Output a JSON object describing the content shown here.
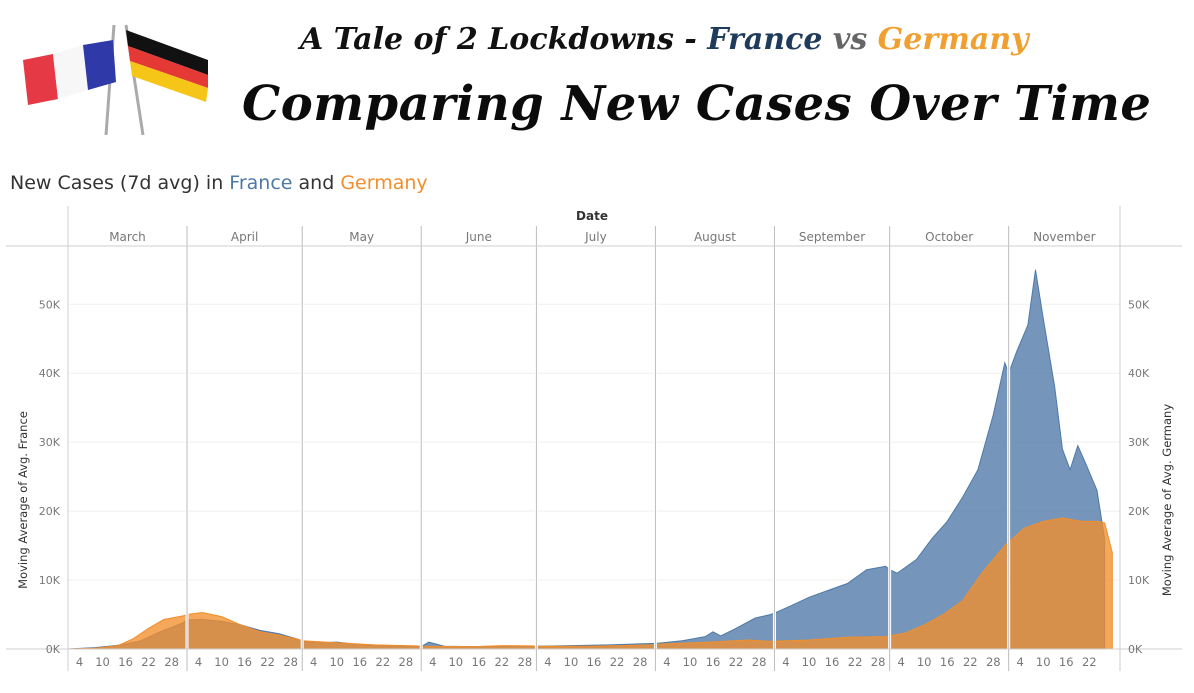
{
  "header": {
    "title_prefix": "A Tale of 2 Lockdowns -",
    "title_france": "France",
    "title_vs": "vs",
    "title_germany": "Germany",
    "subtitle": "Comparing New Cases Over Time"
  },
  "chart_heading": {
    "prefix": "New Cases (7d avg) in",
    "france": "France",
    "and": "and",
    "germany": "Germany"
  },
  "colors": {
    "france": "#4e79a7",
    "germany": "#f28e2b",
    "france_title": "#1f3b5c",
    "germany_title": "#f0a030"
  },
  "chart_data": {
    "type": "area",
    "title": "New Cases (7d avg) in France and Germany",
    "xlabel": "Date",
    "ylabel_left": "Moving Average of Avg. France",
    "ylabel_right": "Moving Average of Avg. Germany",
    "ylim": [
      0,
      57000
    ],
    "y_ticks": [
      0,
      10000,
      20000,
      30000,
      40000,
      50000
    ],
    "y_tick_labels": [
      "0K",
      "10K",
      "20K",
      "30K",
      "40K",
      "50K"
    ],
    "grid": true,
    "months": [
      {
        "name": "March",
        "days": [
          4,
          10,
          16,
          22,
          28
        ]
      },
      {
        "name": "April",
        "days": [
          4,
          10,
          16,
          22,
          28
        ]
      },
      {
        "name": "May",
        "days": [
          4,
          10,
          16,
          22,
          28
        ]
      },
      {
        "name": "June",
        "days": [
          4,
          10,
          16,
          22,
          28
        ]
      },
      {
        "name": "July",
        "days": [
          4,
          10,
          16,
          22,
          28
        ]
      },
      {
        "name": "August",
        "days": [
          4,
          10,
          16,
          22,
          28
        ]
      },
      {
        "name": "September",
        "days": [
          4,
          10,
          16,
          22,
          28
        ]
      },
      {
        "name": "October",
        "days": [
          4,
          10,
          16,
          22,
          28
        ]
      },
      {
        "name": "November",
        "days": [
          4,
          10,
          16,
          22
        ]
      }
    ],
    "series": [
      {
        "name": "France",
        "points": [
          [
            "2020-03-01",
            0
          ],
          [
            "2020-03-08",
            200
          ],
          [
            "2020-03-15",
            600
          ],
          [
            "2020-03-20",
            1200
          ],
          [
            "2020-03-25",
            2500
          ],
          [
            "2020-03-31",
            3800
          ],
          [
            "2020-04-01",
            4200
          ],
          [
            "2020-04-05",
            4300
          ],
          [
            "2020-04-10",
            4000
          ],
          [
            "2020-04-15",
            3500
          ],
          [
            "2020-04-20",
            2700
          ],
          [
            "2020-04-25",
            2200
          ],
          [
            "2020-04-30",
            1400
          ],
          [
            "2020-05-01",
            1100
          ],
          [
            "2020-05-05",
            900
          ],
          [
            "2020-05-10",
            1000
          ],
          [
            "2020-05-15",
            700
          ],
          [
            "2020-05-20",
            500
          ],
          [
            "2020-05-25",
            400
          ],
          [
            "2020-05-31",
            300
          ],
          [
            "2020-06-01",
            350
          ],
          [
            "2020-06-03",
            1000
          ],
          [
            "2020-06-07",
            400
          ],
          [
            "2020-06-15",
            350
          ],
          [
            "2020-06-22",
            400
          ],
          [
            "2020-06-30",
            400
          ],
          [
            "2020-07-01",
            400
          ],
          [
            "2020-07-10",
            500
          ],
          [
            "2020-07-20",
            600
          ],
          [
            "2020-07-31",
            800
          ],
          [
            "2020-08-01",
            800
          ],
          [
            "2020-08-08",
            1200
          ],
          [
            "2020-08-14",
            1800
          ],
          [
            "2020-08-16",
            2500
          ],
          [
            "2020-08-18",
            1900
          ],
          [
            "2020-08-22",
            3000
          ],
          [
            "2020-08-27",
            4500
          ],
          [
            "2020-08-31",
            5000
          ],
          [
            "2020-09-01",
            5200
          ],
          [
            "2020-09-05",
            6200
          ],
          [
            "2020-09-10",
            7500
          ],
          [
            "2020-09-15",
            8500
          ],
          [
            "2020-09-20",
            9500
          ],
          [
            "2020-09-25",
            11500
          ],
          [
            "2020-09-30",
            12000
          ],
          [
            "2020-10-01",
            11500
          ],
          [
            "2020-10-03",
            11000
          ],
          [
            "2020-10-08",
            13000
          ],
          [
            "2020-10-12",
            16000
          ],
          [
            "2020-10-16",
            18500
          ],
          [
            "2020-10-20",
            22000
          ],
          [
            "2020-10-24",
            26000
          ],
          [
            "2020-10-28",
            34000
          ],
          [
            "2020-10-31",
            41500
          ],
          [
            "2020-11-01",
            40000
          ],
          [
            "2020-11-03",
            43000
          ],
          [
            "2020-11-06",
            47000
          ],
          [
            "2020-11-08",
            55000
          ],
          [
            "2020-11-10",
            48000
          ],
          [
            "2020-11-13",
            38000
          ],
          [
            "2020-11-15",
            29000
          ],
          [
            "2020-11-17",
            26000
          ],
          [
            "2020-11-19",
            29500
          ],
          [
            "2020-11-21",
            27000
          ],
          [
            "2020-11-24",
            23000
          ],
          [
            "2020-11-26",
            16000
          ]
        ]
      },
      {
        "name": "Germany",
        "points": [
          [
            "2020-03-01",
            0
          ],
          [
            "2020-03-08",
            100
          ],
          [
            "2020-03-14",
            500
          ],
          [
            "2020-03-18",
            1500
          ],
          [
            "2020-03-22",
            3000
          ],
          [
            "2020-03-26",
            4300
          ],
          [
            "2020-03-31",
            4800
          ],
          [
            "2020-04-01",
            5000
          ],
          [
            "2020-04-05",
            5300
          ],
          [
            "2020-04-10",
            4700
          ],
          [
            "2020-04-15",
            3500
          ],
          [
            "2020-04-20",
            2500
          ],
          [
            "2020-04-25",
            2000
          ],
          [
            "2020-04-30",
            1400
          ],
          [
            "2020-05-01",
            1200
          ],
          [
            "2020-05-10",
            900
          ],
          [
            "2020-05-20",
            600
          ],
          [
            "2020-05-31",
            450
          ],
          [
            "2020-06-01",
            400
          ],
          [
            "2020-06-15",
            350
          ],
          [
            "2020-06-22",
            500
          ],
          [
            "2020-06-30",
            450
          ],
          [
            "2020-07-01",
            400
          ],
          [
            "2020-07-15",
            400
          ],
          [
            "2020-07-31",
            600
          ],
          [
            "2020-08-01",
            700
          ],
          [
            "2020-08-15",
            1000
          ],
          [
            "2020-08-25",
            1300
          ],
          [
            "2020-08-31",
            1100
          ],
          [
            "2020-09-01",
            1150
          ],
          [
            "2020-09-10",
            1300
          ],
          [
            "2020-09-20",
            1700
          ],
          [
            "2020-09-30",
            1800
          ],
          [
            "2020-10-01",
            1900
          ],
          [
            "2020-10-05",
            2300
          ],
          [
            "2020-10-10",
            3500
          ],
          [
            "2020-10-15",
            5000
          ],
          [
            "2020-10-20",
            7000
          ],
          [
            "2020-10-25",
            11000
          ],
          [
            "2020-10-31",
            15000
          ],
          [
            "2020-11-01",
            15500
          ],
          [
            "2020-11-05",
            17500
          ],
          [
            "2020-11-10",
            18500
          ],
          [
            "2020-11-15",
            19000
          ],
          [
            "2020-11-20",
            18500
          ],
          [
            "2020-11-24",
            18500
          ],
          [
            "2020-11-26",
            18300
          ],
          [
            "2020-11-28",
            14000
          ]
        ]
      }
    ]
  }
}
